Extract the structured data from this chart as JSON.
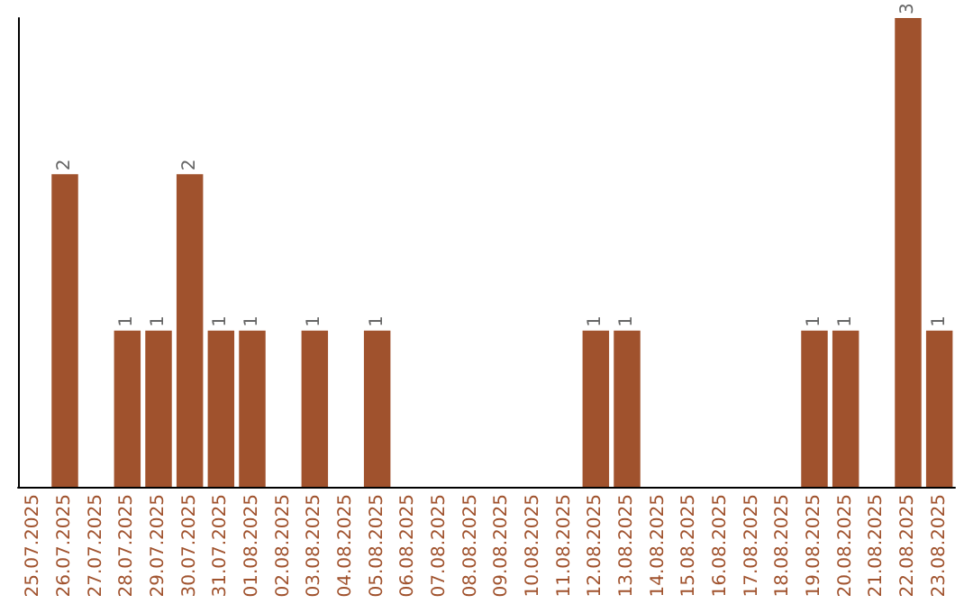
{
  "chart_data": {
    "type": "bar",
    "categories": [
      "25.07.2025",
      "26.07.2025",
      "27.07.2025",
      "28.07.2025",
      "29.07.2025",
      "30.07.2025",
      "31.07.2025",
      "01.08.2025",
      "02.08.2025",
      "03.08.2025",
      "04.08.2025",
      "05.08.2025",
      "06.08.2025",
      "07.08.2025",
      "08.08.2025",
      "09.08.2025",
      "10.08.2025",
      "11.08.2025",
      "12.08.2025",
      "13.08.2025",
      "14.08.2025",
      "15.08.2025",
      "16.08.2025",
      "17.08.2025",
      "18.08.2025",
      "19.08.2025",
      "20.08.2025",
      "21.08.2025",
      "22.08.2025",
      "23.08.2025"
    ],
    "values": [
      0,
      2,
      0,
      1,
      1,
      2,
      1,
      1,
      0,
      1,
      0,
      1,
      0,
      0,
      0,
      0,
      0,
      0,
      1,
      1,
      0,
      0,
      0,
      0,
      0,
      1,
      1,
      0,
      3,
      1
    ],
    "value_labels": [
      null,
      "2",
      null,
      "1",
      "1",
      "2",
      "1",
      "1",
      null,
      "1",
      null,
      "1",
      null,
      null,
      null,
      null,
      null,
      null,
      "1",
      "1",
      null,
      null,
      null,
      null,
      null,
      "1",
      "1",
      null,
      "3",
      "1"
    ],
    "color": "#a0522d",
    "tick_labels": "x",
    "grid": false
  }
}
